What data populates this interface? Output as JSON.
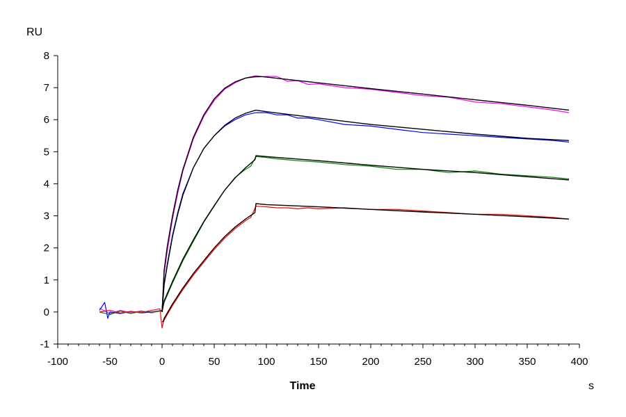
{
  "chart_data": {
    "type": "line",
    "title": "",
    "xlabel": "Time",
    "x_unit": "s",
    "ylabel": "RU",
    "xlim": [
      -100,
      400
    ],
    "ylim": [
      -1,
      8
    ],
    "x_ticks": [
      -100,
      -50,
      0,
      50,
      100,
      150,
      200,
      250,
      300,
      350,
      400
    ],
    "y_ticks": [
      -1,
      0,
      1,
      2,
      3,
      4,
      5,
      6,
      7,
      8
    ],
    "grid": false,
    "legend": "none",
    "series": [
      {
        "color": "#ff00ff",
        "x": [
          -60,
          -50,
          -40,
          -30,
          -20,
          -10,
          0,
          2,
          5,
          10,
          15,
          20,
          30,
          40,
          50,
          60,
          70,
          80,
          90,
          100,
          110,
          120,
          130,
          140,
          150,
          175,
          200,
          225,
          250,
          275,
          300,
          325,
          350,
          375,
          390
        ],
        "y": [
          0.12,
          -0.05,
          0.05,
          -0.02,
          0.03,
          -0.03,
          0.05,
          1.2,
          1.9,
          2.9,
          3.7,
          4.4,
          5.4,
          6.1,
          6.6,
          6.95,
          7.15,
          7.3,
          7.33,
          7.35,
          7.35,
          7.2,
          7.22,
          7.1,
          7.12,
          7.0,
          6.95,
          6.85,
          6.75,
          6.7,
          6.55,
          6.5,
          6.4,
          6.3,
          6.22
        ]
      },
      {
        "color": "#0000ff",
        "x": [
          -60,
          -55,
          -52,
          -50,
          -40,
          -30,
          -20,
          -10,
          0,
          2,
          5,
          10,
          15,
          20,
          30,
          40,
          50,
          60,
          70,
          80,
          90,
          100,
          110,
          120,
          130,
          140,
          150,
          175,
          200,
          225,
          250,
          275,
          300,
          325,
          350,
          375,
          390
        ],
        "y": [
          0.05,
          0.3,
          -0.2,
          0.0,
          -0.05,
          0.02,
          -0.03,
          0.0,
          0.05,
          0.9,
          1.5,
          2.4,
          3.1,
          3.7,
          4.5,
          5.1,
          5.5,
          5.8,
          6.0,
          6.15,
          6.22,
          6.22,
          6.15,
          6.15,
          6.05,
          6.05,
          6.0,
          5.85,
          5.8,
          5.7,
          5.6,
          5.55,
          5.5,
          5.45,
          5.4,
          5.35,
          5.3
        ]
      },
      {
        "color": "#008000",
        "x": [
          -60,
          -50,
          -40,
          -30,
          -20,
          -10,
          0,
          2,
          10,
          20,
          30,
          40,
          50,
          60,
          70,
          80,
          85,
          90,
          100,
          110,
          120,
          130,
          140,
          150,
          175,
          200,
          225,
          250,
          275,
          300,
          325,
          350,
          375,
          390
        ],
        "y": [
          0.0,
          -0.08,
          0.03,
          -0.05,
          0.02,
          0.0,
          0.03,
          0.3,
          0.9,
          1.6,
          2.2,
          2.8,
          3.3,
          3.8,
          4.2,
          4.45,
          4.55,
          4.85,
          4.82,
          4.78,
          4.75,
          4.72,
          4.7,
          4.68,
          4.6,
          4.55,
          4.45,
          4.45,
          4.35,
          4.4,
          4.3,
          4.25,
          4.2,
          4.15
        ]
      },
      {
        "color": "#ff0000",
        "x": [
          -60,
          -50,
          -40,
          -30,
          -20,
          -10,
          -2,
          0,
          1,
          2,
          10,
          20,
          30,
          40,
          50,
          60,
          70,
          80,
          85,
          90,
          100,
          110,
          120,
          130,
          140,
          150,
          175,
          200,
          225,
          250,
          275,
          300,
          325,
          350,
          375,
          390
        ],
        "y": [
          0.0,
          0.05,
          -0.03,
          0.02,
          -0.02,
          0.05,
          0.1,
          -0.5,
          -0.35,
          -0.25,
          0.2,
          0.7,
          1.15,
          1.55,
          1.95,
          2.3,
          2.6,
          2.85,
          2.95,
          3.3,
          3.28,
          3.25,
          3.25,
          3.22,
          3.25,
          3.22,
          3.25,
          3.2,
          3.2,
          3.15,
          3.1,
          3.05,
          3.05,
          3.0,
          2.95,
          2.9
        ]
      },
      {
        "color": "#000000",
        "x": [
          0,
          2,
          5,
          10,
          15,
          20,
          30,
          40,
          50,
          60,
          70,
          80,
          90,
          100,
          150,
          200,
          250,
          300,
          350,
          390
        ],
        "y": [
          0.0,
          1.3,
          2.05,
          3.0,
          3.8,
          4.45,
          5.45,
          6.15,
          6.65,
          6.98,
          7.18,
          7.3,
          7.36,
          7.33,
          7.15,
          6.97,
          6.8,
          6.62,
          6.45,
          6.3
        ]
      },
      {
        "color": "#000000",
        "x": [
          0,
          2,
          5,
          10,
          15,
          20,
          30,
          40,
          50,
          60,
          70,
          80,
          90,
          100,
          150,
          200,
          250,
          300,
          350,
          390
        ],
        "y": [
          0.0,
          0.85,
          1.45,
          2.35,
          3.05,
          3.65,
          4.5,
          5.1,
          5.5,
          5.82,
          6.05,
          6.2,
          6.3,
          6.25,
          6.05,
          5.85,
          5.7,
          5.55,
          5.42,
          5.35
        ]
      },
      {
        "color": "#000000",
        "x": [
          0,
          2,
          10,
          20,
          30,
          40,
          50,
          60,
          70,
          80,
          89,
          90,
          100,
          150,
          200,
          250,
          300,
          350,
          390
        ],
        "y": [
          0.0,
          0.35,
          0.95,
          1.65,
          2.25,
          2.82,
          3.32,
          3.8,
          4.18,
          4.5,
          4.75,
          4.88,
          4.85,
          4.72,
          4.58,
          4.45,
          4.35,
          4.22,
          4.12
        ]
      },
      {
        "color": "#000000",
        "x": [
          0,
          1,
          2,
          10,
          20,
          30,
          40,
          50,
          60,
          70,
          80,
          89,
          90,
          100,
          150,
          200,
          250,
          300,
          350,
          390
        ],
        "y": [
          -0.3,
          -0.3,
          -0.2,
          0.25,
          0.75,
          1.2,
          1.6,
          2.0,
          2.35,
          2.65,
          2.9,
          3.1,
          3.38,
          3.35,
          3.28,
          3.2,
          3.12,
          3.05,
          2.97,
          2.9
        ]
      }
    ]
  }
}
